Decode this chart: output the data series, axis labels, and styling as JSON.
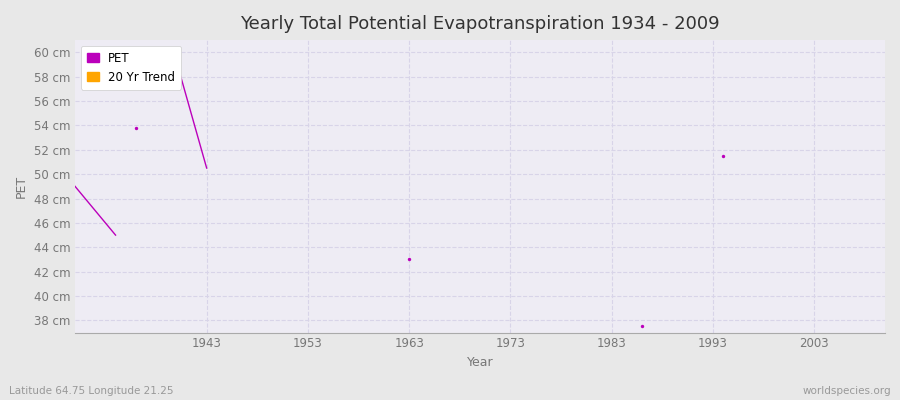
{
  "title": "Yearly Total Potential Evapotranspiration 1934 - 2009",
  "xlabel": "Year",
  "ylabel": "PET",
  "background_color": "#e8e8e8",
  "plot_bg_color": "#eeecf4",
  "grid_color": "#d8d4e8",
  "ylim": [
    37,
    61
  ],
  "xlim": [
    1930,
    2010
  ],
  "yticks": [
    38,
    40,
    42,
    44,
    46,
    48,
    50,
    52,
    54,
    56,
    58,
    60
  ],
  "ytick_labels": [
    "38 cm",
    "40 cm",
    "42 cm",
    "44 cm",
    "46 cm",
    "48 cm",
    "50 cm",
    "52 cm",
    "54 cm",
    "56 cm",
    "58 cm",
    "60 cm"
  ],
  "xticks": [
    1943,
    1953,
    1963,
    1973,
    1983,
    1993,
    2003
  ],
  "pet_color": "#bb00bb",
  "trend_color": "#ffa500",
  "pet_line1_x": [
    1930,
    1934
  ],
  "pet_line1_y": [
    49.0,
    45.0
  ],
  "pet_line2_x": [
    1940,
    1943
  ],
  "pet_line2_y": [
    59.3,
    50.5
  ],
  "pet_points_x": [
    1936,
    1963,
    1986,
    1994
  ],
  "pet_points_y": [
    53.8,
    43.0,
    37.5,
    51.5
  ],
  "subtitle": "Latitude 64.75 Longitude 21.25",
  "watermark": "worldspecies.org",
  "title_fontsize": 13,
  "label_fontsize": 9,
  "tick_fontsize": 8.5
}
